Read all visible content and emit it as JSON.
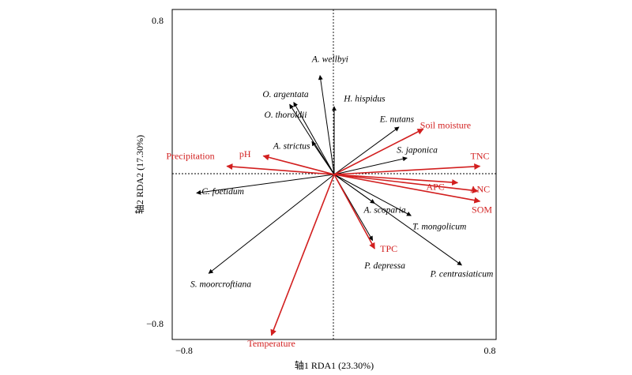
{
  "chart_data": {
    "type": "scatter",
    "subtype": "rda-biplot",
    "xlabel": "轴1 RDA1 (23.30%)",
    "ylabel": "轴2 RDA2 (17.30%)",
    "xlim": [
      -0.8,
      0.8
    ],
    "ylim": [
      -0.8,
      0.8
    ],
    "x_tick_labels": [
      "−0.8",
      "0.8"
    ],
    "y_tick_labels": [
      "0.8",
      "−0.8"
    ],
    "grid": false,
    "colors": {
      "species": "#000000",
      "environment": "#d21f1f"
    },
    "species": [
      {
        "name": "A. wellbyi",
        "x": -0.07,
        "y": 0.48,
        "lx": -0.02,
        "ly": 0.56
      },
      {
        "name": "H. hispidus",
        "x": 0.0,
        "y": 0.33,
        "lx": 0.15,
        "ly": 0.37
      },
      {
        "name": "O. argentata",
        "x": -0.2,
        "y": 0.35,
        "lx": -0.24,
        "ly": 0.39
      },
      {
        "name": "O. thoroldii",
        "x": -0.22,
        "y": 0.34,
        "lx": -0.24,
        "ly": 0.29
      },
      {
        "name": "E. nutans",
        "x": 0.32,
        "y": 0.23,
        "lx": 0.31,
        "ly": 0.27
      },
      {
        "name": "A. strictus",
        "x": -0.11,
        "y": 0.16,
        "lx": -0.21,
        "ly": 0.14
      },
      {
        "name": "S. japonica",
        "x": 0.36,
        "y": 0.08,
        "lx": 0.41,
        "ly": 0.12
      },
      {
        "name": "C. foetidum",
        "x": -0.68,
        "y": -0.09,
        "lx": -0.55,
        "ly": -0.08
      },
      {
        "name": "A. scoparia",
        "x": 0.2,
        "y": -0.14,
        "lx": 0.25,
        "ly": -0.17
      },
      {
        "name": "T. mongolicum",
        "x": 0.38,
        "y": -0.2,
        "lx": 0.52,
        "ly": -0.25
      },
      {
        "name": "P. depressa",
        "x": 0.19,
        "y": -0.32,
        "lx": 0.25,
        "ly": -0.44
      },
      {
        "name": "P. centrasiaticum",
        "x": 0.63,
        "y": -0.44,
        "lx": 0.63,
        "ly": -0.48
      },
      {
        "name": "S. moorcroftiana",
        "x": -0.62,
        "y": -0.48,
        "lx": -0.56,
        "ly": -0.53
      }
    ],
    "environment": [
      {
        "name": "Soil moisture",
        "x": 0.44,
        "y": 0.22,
        "lx": 0.55,
        "ly": 0.24
      },
      {
        "name": "TNC",
        "x": 0.72,
        "y": 0.04,
        "lx": 0.72,
        "ly": 0.09
      },
      {
        "name": "APC",
        "x": 0.61,
        "y": -0.04,
        "lx": 0.5,
        "ly": -0.06
      },
      {
        "name": "ANC",
        "x": 0.71,
        "y": -0.08,
        "lx": 0.72,
        "ly": -0.07
      },
      {
        "name": "SOM",
        "x": 0.72,
        "y": -0.13,
        "lx": 0.73,
        "ly": -0.17
      },
      {
        "name": "TPC",
        "x": 0.2,
        "y": -0.36,
        "lx": 0.27,
        "ly": -0.36
      },
      {
        "name": "pH",
        "x": -0.35,
        "y": 0.09,
        "lx": -0.44,
        "ly": 0.1
      },
      {
        "name": "Precipitation",
        "x": -0.53,
        "y": 0.04,
        "lx": -0.83,
        "ly": 0.09
      },
      {
        "name": "Temperature",
        "x": -0.31,
        "y": -0.78,
        "lx": -0.31,
        "ly": -0.82
      }
    ]
  }
}
